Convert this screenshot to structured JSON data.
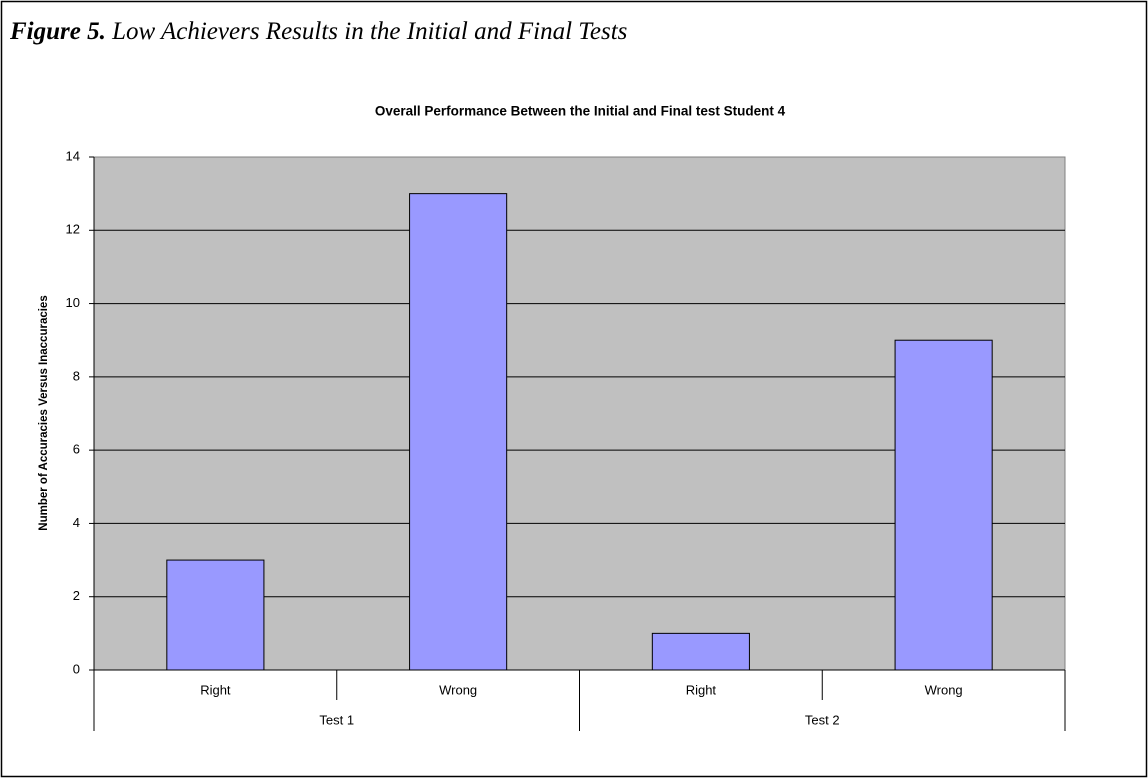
{
  "figure_label": "Figure 5.",
  "figure_caption": "Low Achievers Results in the Initial and Final Tests",
  "chart_data": {
    "type": "bar",
    "title": "Overall Performance Between the Initial and Final test Student 4",
    "y_axis_label": "Number of Accuracies Versus Inaccuracies",
    "categories": [
      "Right",
      "Wrong",
      "Right",
      "Wrong"
    ],
    "groups": [
      "Test 1",
      "Test 2"
    ],
    "values": [
      3,
      13,
      1,
      9
    ],
    "color": "#9999ff",
    "ylim": [
      0,
      14
    ],
    "yticks": [
      0,
      2,
      4,
      6,
      8,
      10,
      12,
      14
    ],
    "grid": true
  }
}
